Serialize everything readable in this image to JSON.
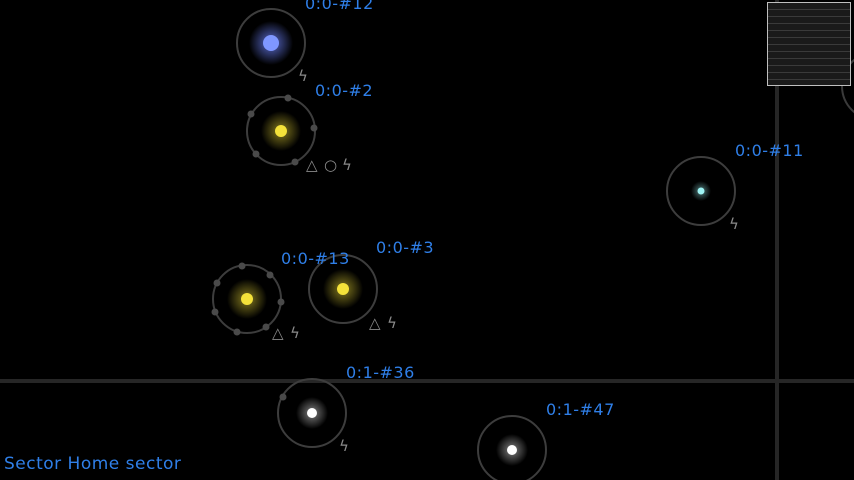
{
  "sector_label": "Sector Home sector",
  "systems": [
    {
      "label": "0:0-#12",
      "star_color": "#7f97ff",
      "icons": [
        "bolt-icon"
      ]
    },
    {
      "label": "0:0-#2",
      "star_color": "#f4e23a",
      "icons": [
        "triangle-icon",
        "circle-icon",
        "bolt-icon"
      ]
    },
    {
      "label": "0:0-#11",
      "star_color": "#9ef3f3",
      "icons": [
        "bolt-icon"
      ]
    },
    {
      "label": "0:0-#3",
      "star_color": "#f4e23a",
      "icons": [
        "triangle-icon",
        "bolt-icon"
      ]
    },
    {
      "label": "0:0-#13",
      "star_color": "#f4e23a",
      "icons": [
        "triangle-icon",
        "bolt-icon"
      ]
    },
    {
      "label": "0:1-#36",
      "star_color": "#ffffff",
      "icons": [
        "bolt-icon"
      ]
    },
    {
      "label": "0:1-#47",
      "star_color": "#ffffff",
      "icons": []
    }
  ]
}
